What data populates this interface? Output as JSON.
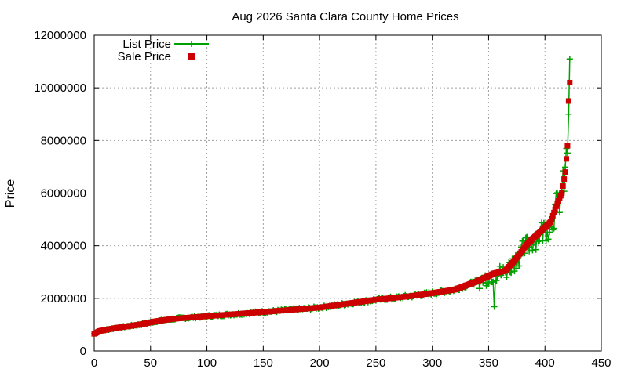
{
  "chart_data": {
    "type": "scatter",
    "title": "Aug 2026 Santa Clara County Home Prices",
    "xlabel": "",
    "ylabel": "Price",
    "xlim": [
      0,
      450
    ],
    "ylim": [
      0,
      12000000
    ],
    "x_ticks": [
      0,
      50,
      100,
      150,
      200,
      250,
      300,
      350,
      400,
      450
    ],
    "y_ticks": [
      0,
      2000000,
      4000000,
      6000000,
      8000000,
      10000000,
      12000000
    ],
    "grid": true,
    "legend_position": "top-left",
    "colors": {
      "list": "#00a000",
      "sale": "#cc0000"
    },
    "sale_curve_knots": [
      [
        0,
        650000
      ],
      [
        5,
        760000
      ],
      [
        20,
        880000
      ],
      [
        40,
        1000000
      ],
      [
        55,
        1130000
      ],
      [
        70,
        1220000
      ],
      [
        100,
        1320000
      ],
      [
        150,
        1480000
      ],
      [
        200,
        1650000
      ],
      [
        250,
        1950000
      ],
      [
        280,
        2080000
      ],
      [
        300,
        2200000
      ],
      [
        320,
        2330000
      ],
      [
        340,
        2650000
      ],
      [
        355,
        2950000
      ],
      [
        365,
        3050000
      ],
      [
        375,
        3550000
      ],
      [
        385,
        4100000
      ],
      [
        395,
        4500000
      ],
      [
        405,
        4900000
      ],
      [
        410,
        5500000
      ],
      [
        415,
        6000000
      ],
      [
        418,
        6800000
      ],
      [
        420,
        7800000
      ],
      [
        421,
        9500000
      ],
      [
        423,
        10900000
      ]
    ],
    "series": [
      {
        "name": "List Price",
        "style": "line-with-plus-markers"
      },
      {
        "name": "Sale Price",
        "style": "square-markers"
      }
    ],
    "n_points": 423
  }
}
